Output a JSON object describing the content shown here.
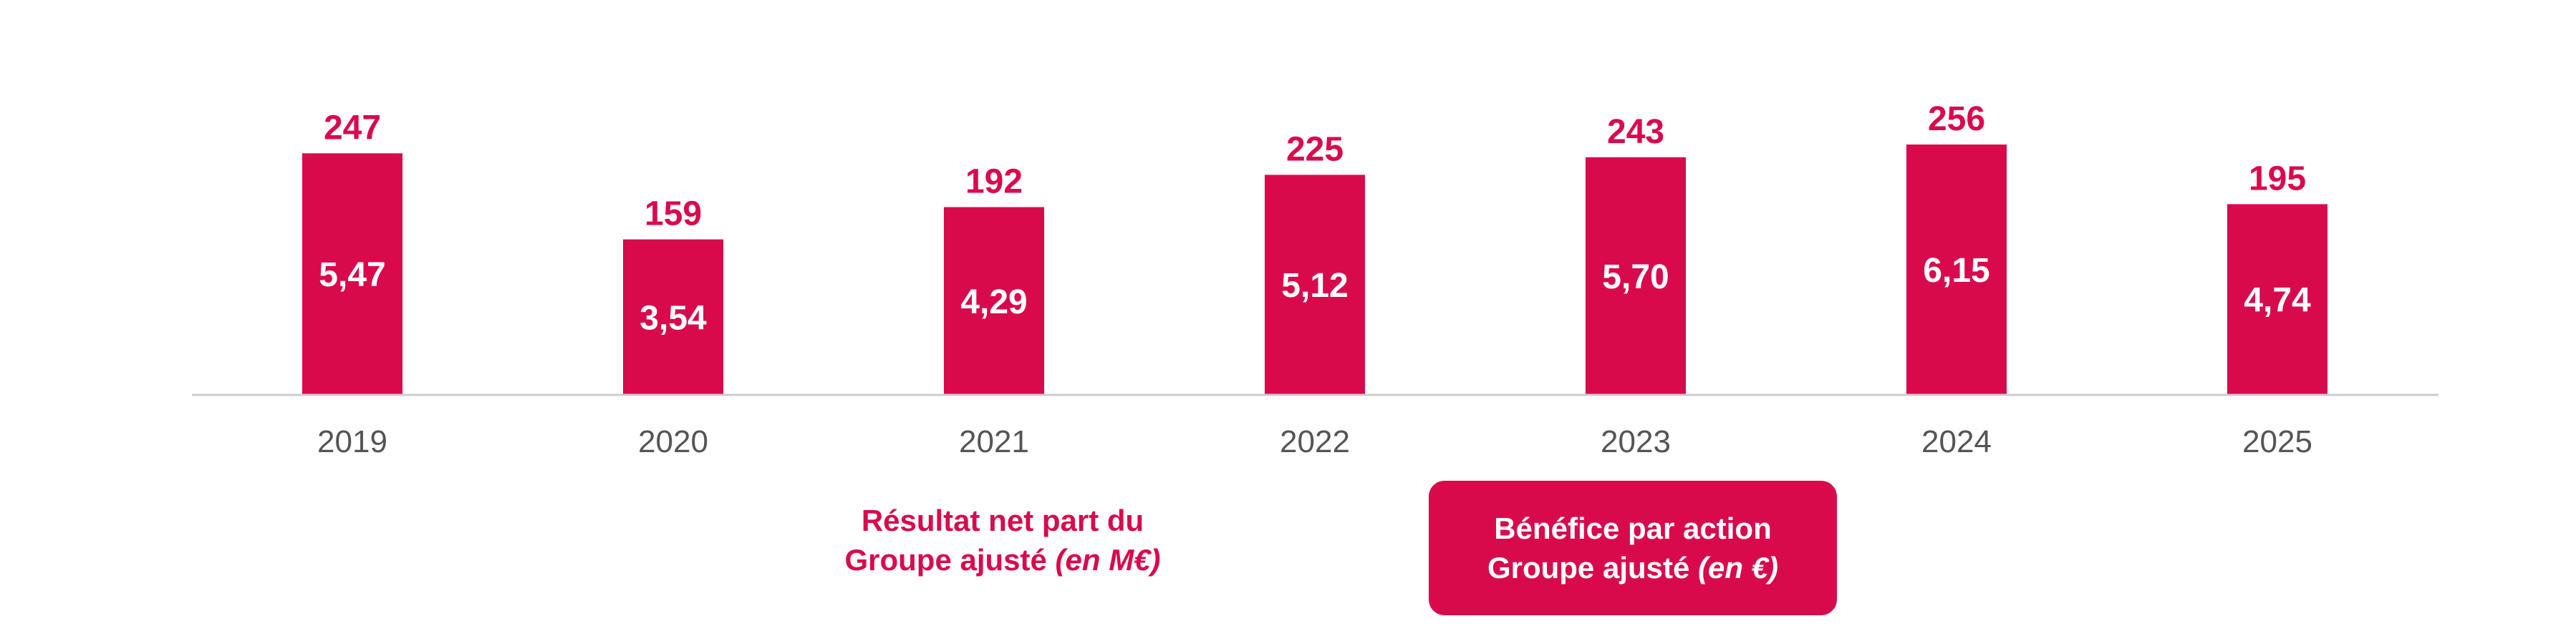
{
  "chart_data": {
    "type": "bar",
    "categories": [
      "2019",
      "2020",
      "2021",
      "2022",
      "2023",
      "2024",
      "2025"
    ],
    "series": [
      {
        "name": "Résultat net part du Groupe ajusté (en M€)",
        "values": [
          247,
          159,
          192,
          225,
          243,
          256,
          195
        ]
      },
      {
        "name": "Bénéfice par action Groupe ajusté (en €)",
        "values": [
          5.47,
          3.54,
          4.29,
          5.12,
          5.7,
          6.15,
          4.74
        ]
      }
    ],
    "value_labels": [
      "247",
      "159",
      "192",
      "225",
      "243",
      "256",
      "195"
    ],
    "eps_labels": [
      "5,47",
      "3,54",
      "4,29",
      "5,12",
      "5,70",
      "6,15",
      "4,74"
    ],
    "title": "",
    "xlabel": "",
    "ylabel": "",
    "ylim": [
      0,
      280
    ],
    "grid": false,
    "legend_position": "bottom",
    "colors": {
      "bar": "#d90a4c",
      "bar_label": "#d90a4c",
      "inner_label": "#ffffff",
      "axis": "#cccccc",
      "tick_label": "#555555"
    }
  },
  "legend": {
    "net_income": {
      "line1": "Résultat net part du",
      "line2_main": "Groupe ajusté ",
      "line2_unit": "(en M€)"
    },
    "eps": {
      "line1": "Bénéfice par action",
      "line2_main": "Groupe ajusté ",
      "line2_unit": "(en €)"
    }
  }
}
